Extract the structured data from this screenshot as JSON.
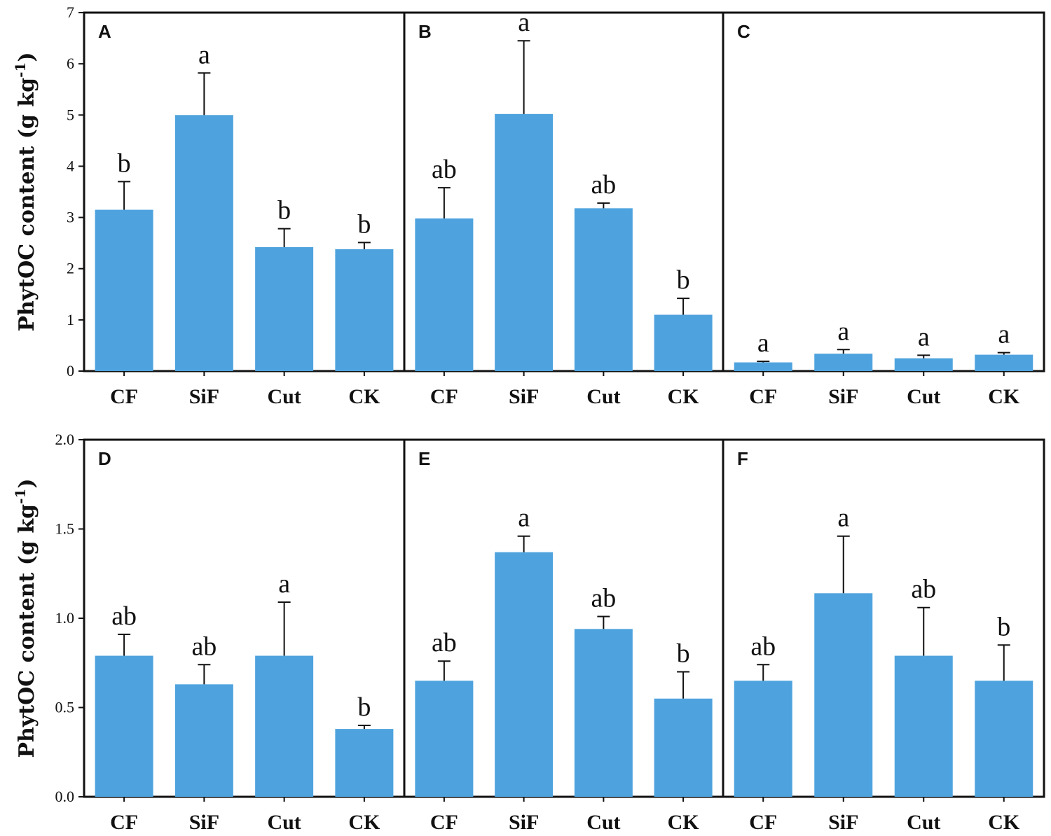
{
  "figure": {
    "colors": {
      "bar": "#4EA3DE",
      "frame": "#111111"
    }
  },
  "chart_data": [
    {
      "type": "bar",
      "row": 0,
      "panel": 0,
      "label": "A",
      "ylabel": "PhytOC content (g kg-1)",
      "ylim": [
        0,
        7
      ],
      "yticks": [
        "0",
        "1",
        "2",
        "3",
        "4",
        "5",
        "6",
        "7"
      ],
      "categories": [
        "CF",
        "SiF",
        "Cut",
        "CK"
      ],
      "values": [
        3.15,
        5.0,
        2.42,
        2.38
      ],
      "errors": [
        0.55,
        0.82,
        0.36,
        0.13
      ],
      "letters": [
        "b",
        "a",
        "b",
        "b"
      ]
    },
    {
      "type": "bar",
      "row": 0,
      "panel": 1,
      "label": "B",
      "ylim": [
        0,
        7
      ],
      "categories": [
        "CF",
        "SiF",
        "Cut",
        "CK"
      ],
      "values": [
        2.98,
        5.02,
        3.18,
        1.1
      ],
      "errors": [
        0.6,
        1.43,
        0.1,
        0.32
      ],
      "letters": [
        "ab",
        "a",
        "ab",
        "b"
      ]
    },
    {
      "type": "bar",
      "row": 0,
      "panel": 2,
      "label": "C",
      "ylim": [
        0,
        7
      ],
      "categories": [
        "CF",
        "SiF",
        "Cut",
        "CK"
      ],
      "values": [
        0.17,
        0.34,
        0.25,
        0.32
      ],
      "errors": [
        0.02,
        0.08,
        0.06,
        0.04
      ],
      "letters": [
        "a",
        "a",
        "a",
        "a"
      ]
    },
    {
      "type": "bar",
      "row": 1,
      "panel": 0,
      "label": "D",
      "ylabel": "PhytOC content (g kg-1)",
      "ylim": [
        0,
        2
      ],
      "yticks": [
        "0.0",
        "0.5",
        "1.0",
        "1.5",
        "2.0"
      ],
      "categories": [
        "CF",
        "SiF",
        "Cut",
        "CK"
      ],
      "values": [
        0.79,
        0.63,
        0.79,
        0.38
      ],
      "errors": [
        0.12,
        0.11,
        0.3,
        0.02
      ],
      "letters": [
        "ab",
        "ab",
        "a",
        "b"
      ]
    },
    {
      "type": "bar",
      "row": 1,
      "panel": 1,
      "label": "E",
      "ylim": [
        0,
        2
      ],
      "categories": [
        "CF",
        "SiF",
        "Cut",
        "CK"
      ],
      "values": [
        0.65,
        1.37,
        0.94,
        0.55
      ],
      "errors": [
        0.11,
        0.09,
        0.07,
        0.15
      ],
      "letters": [
        "ab",
        "a",
        "ab",
        "b"
      ]
    },
    {
      "type": "bar",
      "row": 1,
      "panel": 2,
      "label": "F",
      "ylim": [
        0,
        2
      ],
      "categories": [
        "CF",
        "SiF",
        "Cut",
        "CK"
      ],
      "values": [
        0.65,
        1.14,
        0.79,
        0.65
      ],
      "errors": [
        0.09,
        0.32,
        0.27,
        0.2
      ],
      "letters": [
        "ab",
        "a",
        "ab",
        "b"
      ]
    }
  ]
}
